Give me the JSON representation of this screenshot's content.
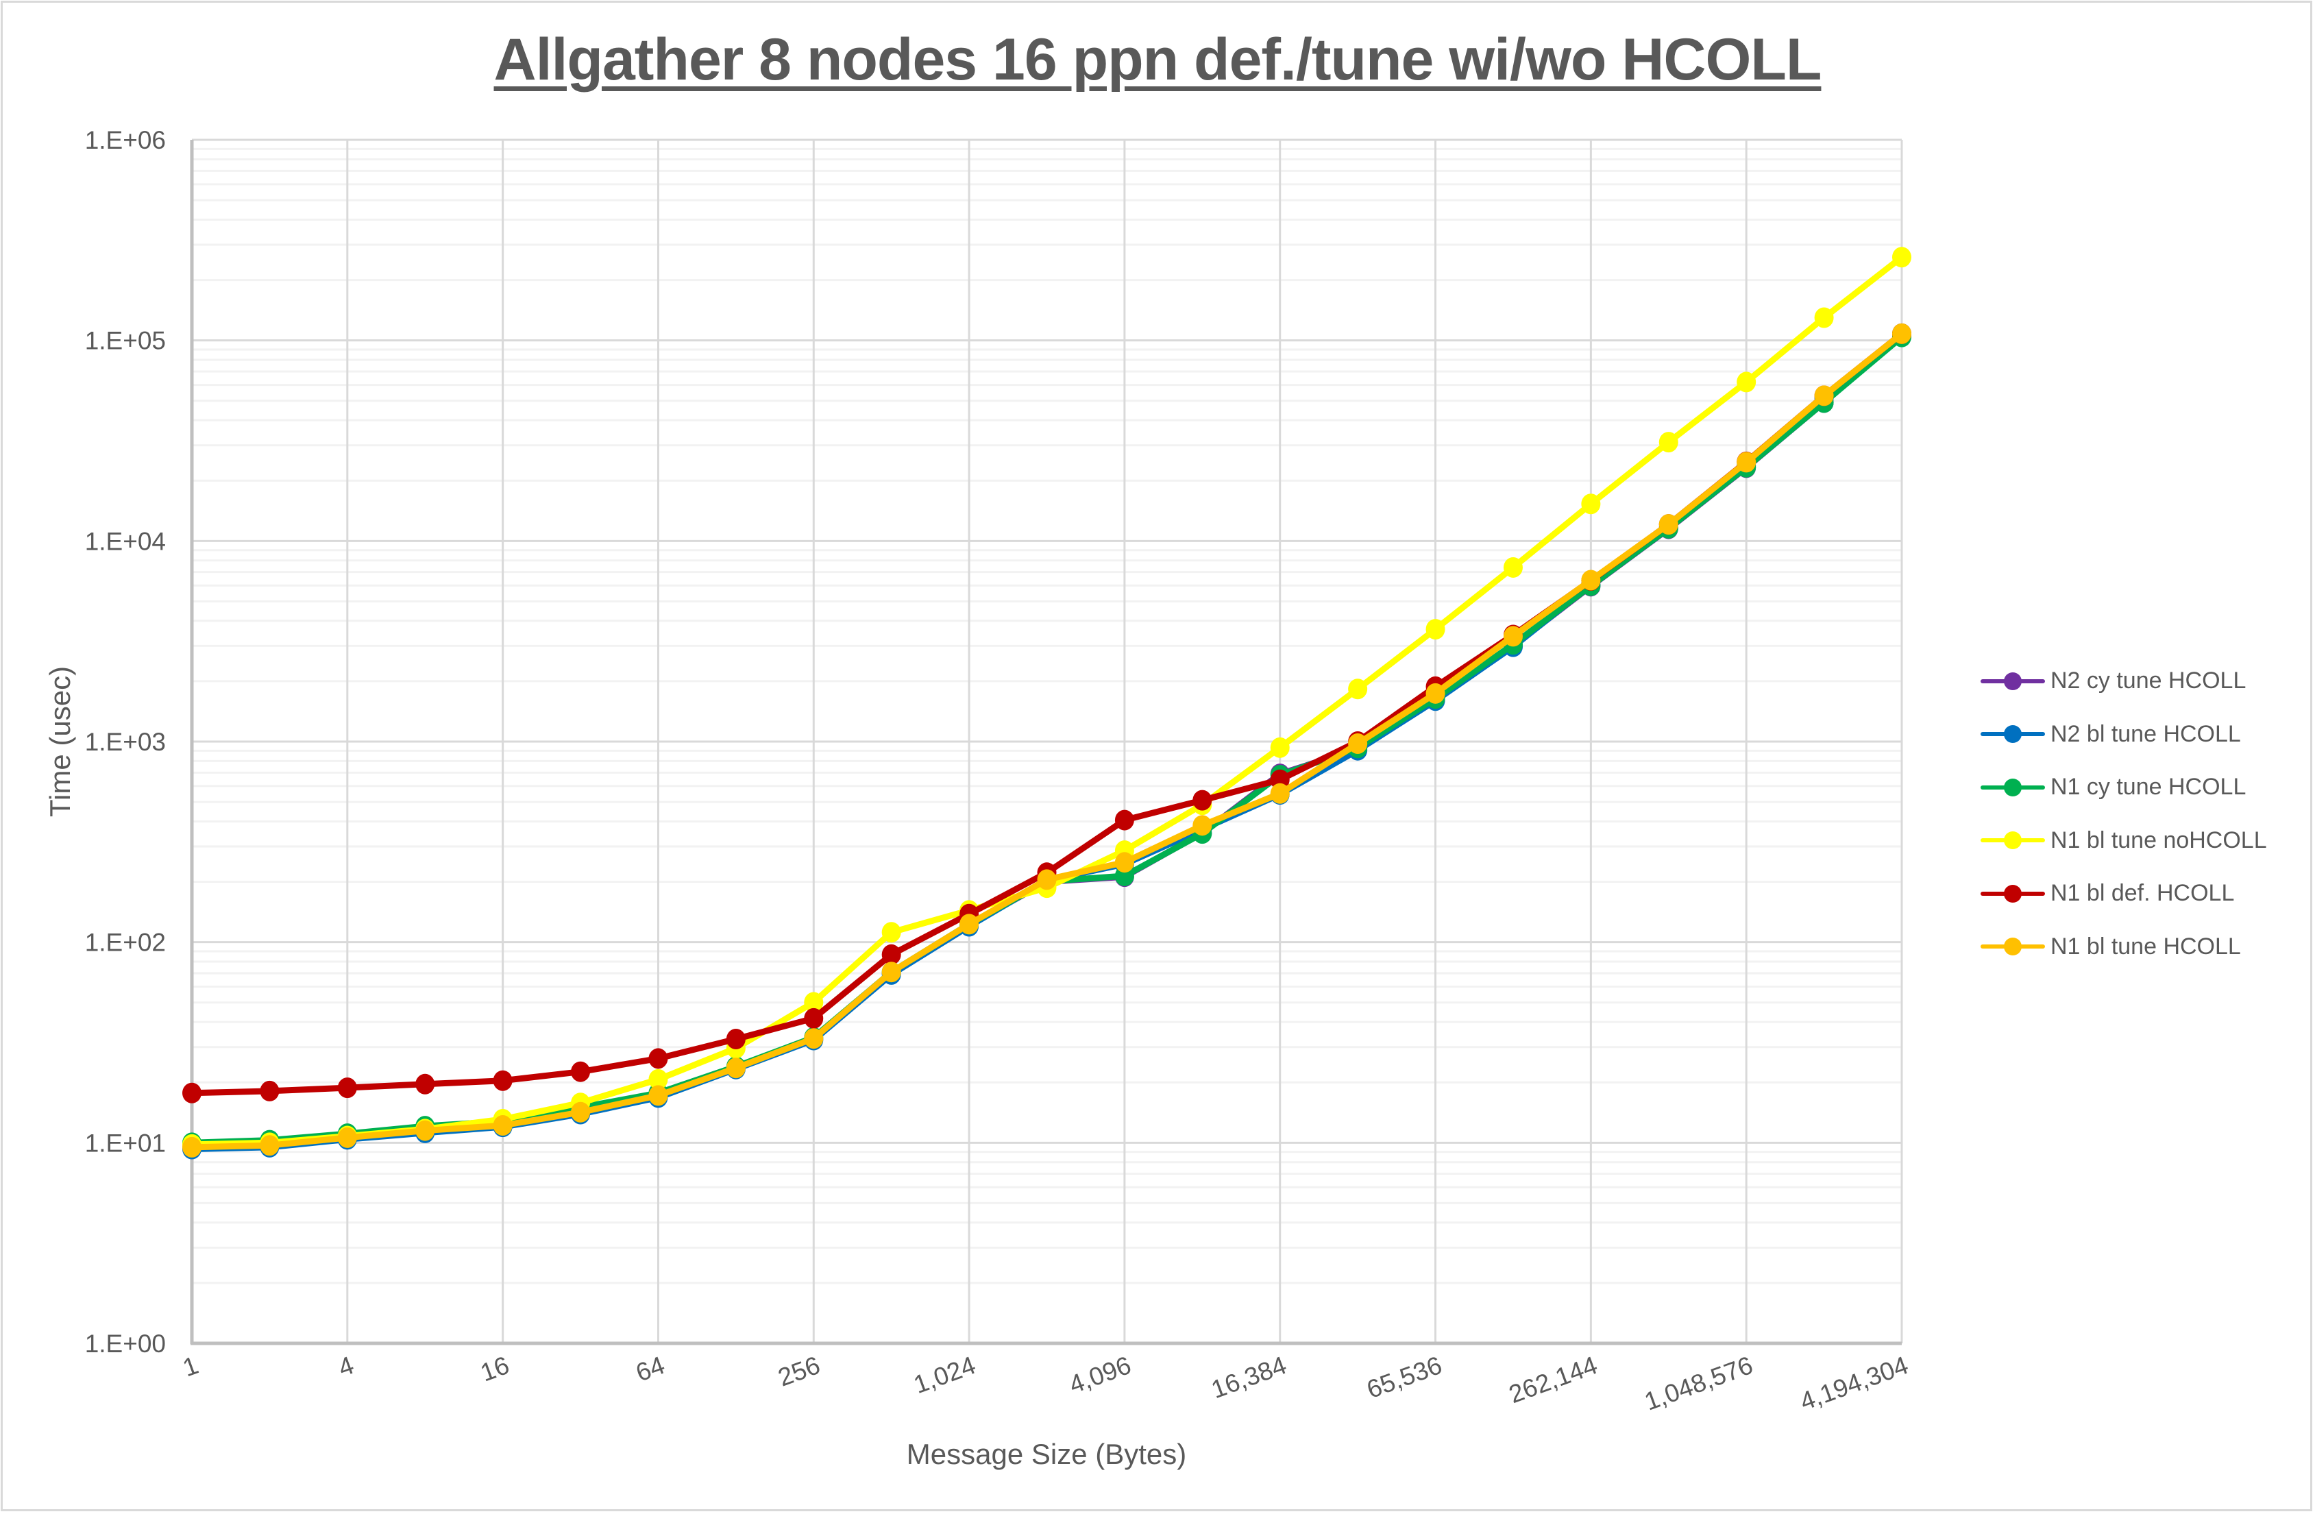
{
  "chart_data": {
    "type": "line",
    "title": "Allgather 8 nodes 16 ppn def./tune wi/wo HCOLL",
    "xlabel": "Message Size (Bytes)",
    "ylabel": "Time (usec)",
    "xscale": "log2",
    "yscale": "log10",
    "ylim": [
      1,
      1000000
    ],
    "grid": true,
    "legend_position": "right",
    "y_tick_labels": [
      "1.E+00",
      "1.E+01",
      "1.E+02",
      "1.E+03",
      "1.E+04",
      "1.E+05",
      "1.E+06"
    ],
    "x_tick_labels": [
      "1",
      "4",
      "16",
      "64",
      "256",
      "1,024",
      "4,096",
      "16,384",
      "65,536",
      "262,144",
      "1,048,576",
      "4,194,304"
    ],
    "x": [
      1,
      2,
      4,
      8,
      16,
      32,
      64,
      128,
      256,
      512,
      1024,
      2048,
      4096,
      8192,
      16384,
      32768,
      65536,
      131072,
      262144,
      524288,
      1048576,
      2097152,
      4194304
    ],
    "series": [
      {
        "name": "N2 cy tune HCOLL",
        "color": "#7030a0",
        "values": [
          9.4,
          9.6,
          10.5,
          11.3,
          12.1,
          14.0,
          17.0,
          23.5,
          33.0,
          70,
          122,
          200,
          212,
          350,
          690,
          920,
          1620,
          3000,
          5950,
          11500,
          23200,
          49000,
          105000
        ]
      },
      {
        "name": "N2 bl tune HCOLL",
        "color": "#0070c0",
        "values": [
          9.3,
          9.5,
          10.4,
          11.2,
          12.0,
          13.9,
          16.8,
          23.3,
          32.5,
          69,
          120,
          203,
          245,
          365,
          545,
          905,
          1600,
          2970,
          6050,
          11700,
          23800,
          51500,
          108000
        ]
      },
      {
        "name": "N1 cy tune HCOLL",
        "color": "#00b050",
        "values": [
          10.0,
          10.3,
          11.1,
          12.1,
          12.8,
          15.0,
          17.7,
          24.0,
          33.5,
          71,
          123,
          201,
          214,
          348,
          680,
          930,
          1640,
          3050,
          5980,
          11560,
          23300,
          49000,
          104000
        ]
      },
      {
        "name": "N1 bl tune noHCOLL",
        "color": "#ffff00",
        "values": [
          9.8,
          10.0,
          10.8,
          11.7,
          13.1,
          15.8,
          20.7,
          29.6,
          50.1,
          112,
          144,
          187,
          286,
          484,
          933,
          1829,
          3631,
          7380,
          15300,
          31100,
          62000,
          129800,
          260000
        ]
      },
      {
        "name": "N1 bl def. HCOLL",
        "color": "#c00000",
        "values": [
          17.7,
          18.1,
          18.8,
          19.6,
          20.4,
          22.6,
          26.3,
          32.9,
          41.7,
          86.7,
          138,
          222,
          406,
          510,
          645,
          1000,
          1878,
          3400,
          6350,
          12100,
          24800,
          53000,
          108000
        ]
      },
      {
        "name": "N1 bl tune HCOLL",
        "color": "#ffc000",
        "values": [
          9.5,
          9.7,
          10.6,
          11.5,
          12.2,
          14.2,
          17.2,
          23.6,
          33.1,
          71,
          123,
          205,
          250,
          382,
          551,
          977,
          1737,
          3350,
          6380,
          12100,
          24700,
          53000,
          108000
        ]
      }
    ]
  },
  "ui": {
    "title": "Allgather 8 nodes 16 ppn def./tune wi/wo HCOLL",
    "x_axis_title": "Message Size (Bytes)",
    "y_axis_title": "Time (usec)",
    "colors": {
      "text": "#595959",
      "major_grid": "#d9d9d9",
      "minor_grid": "#f2f2f2",
      "axis_line": "#bfbfbf"
    }
  }
}
